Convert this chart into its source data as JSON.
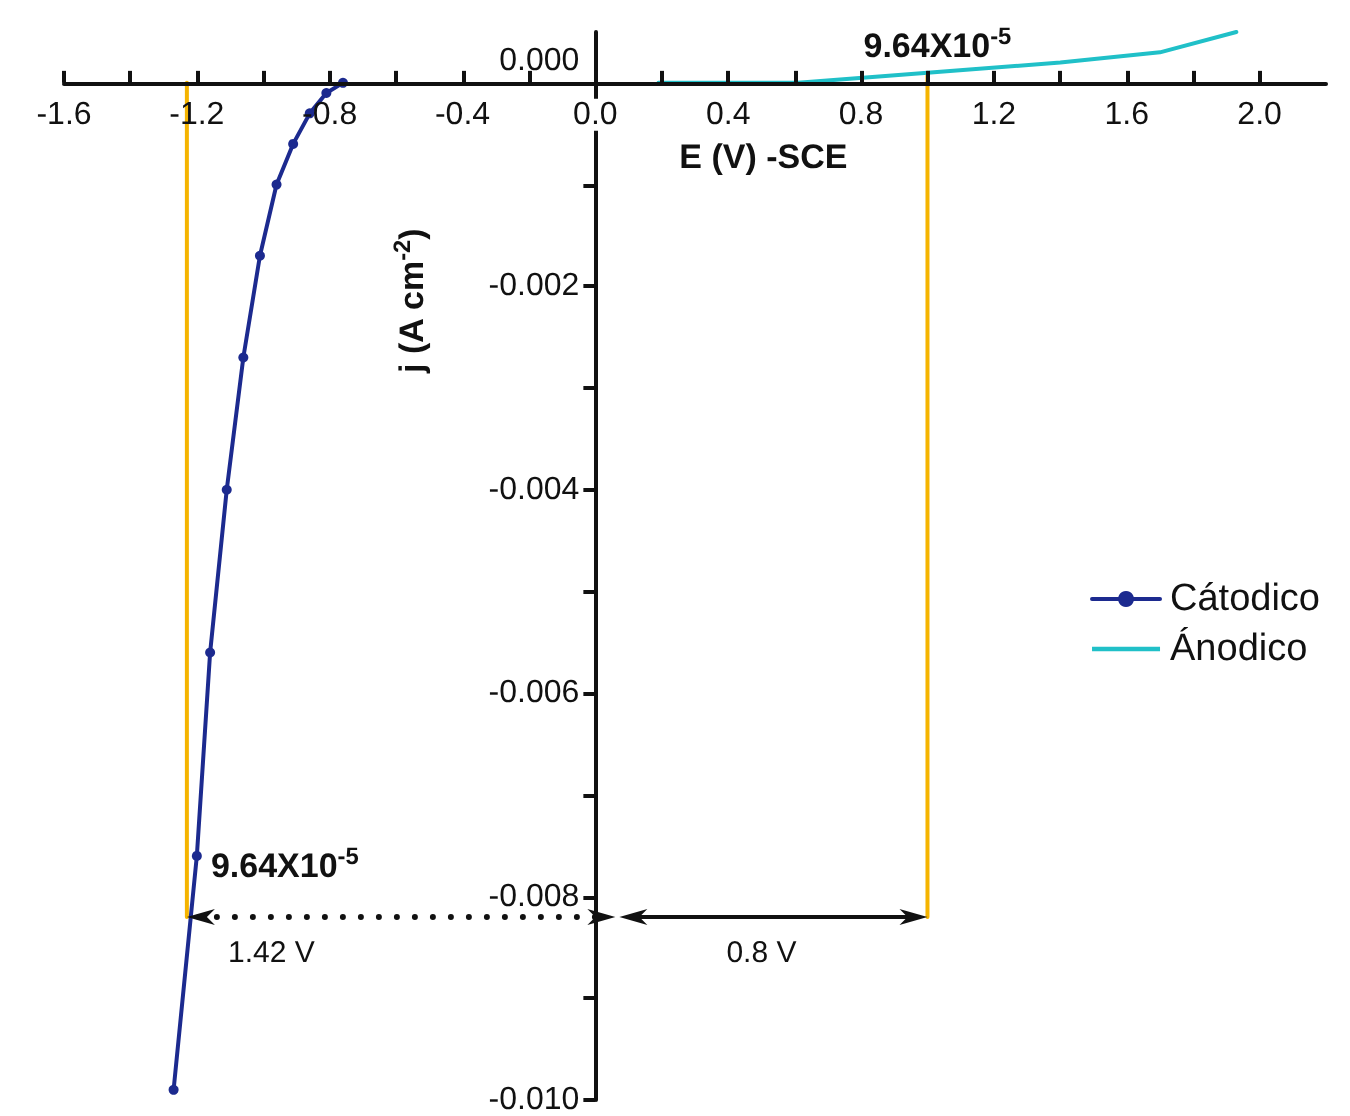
{
  "chart_data": {
    "type": "line",
    "xlabel": "E (V) -SCE",
    "ylabel": "j (A cm$^{-2}$)",
    "xlim": [
      -1.6,
      2.2
    ],
    "xticks": [
      -1.6,
      {
        "value": -1.4,
        "label": null
      },
      -1.2,
      {
        "value": -1.0,
        "label": null
      },
      -0.8,
      {
        "value": -0.6,
        "label": null
      },
      -0.4,
      {
        "value": -0.2,
        "label": null
      },
      {
        "value": 0,
        "label": "0.0"
      },
      {
        "value": 0.2,
        "label": null
      },
      0.4,
      {
        "value": 0.6,
        "label": null
      },
      0.8,
      {
        "value": 1.0,
        "label": null
      },
      1.2,
      {
        "value": 1.4,
        "label": null
      },
      1.6,
      {
        "value": 1.8,
        "label": null
      },
      {
        "value": 2.0,
        "label": "2.0"
      }
    ],
    "ylim": [
      -0.01,
      0.0005
    ],
    "yticks": [
      {
        "value": 0,
        "label": "0.000"
      },
      {
        "value": -0.001,
        "label": null
      },
      {
        "value": -0.002,
        "label": "-0.002"
      },
      {
        "value": -0.003,
        "label": null
      },
      {
        "value": -0.004,
        "label": "-0.004"
      },
      {
        "value": -0.005,
        "label": null
      },
      {
        "value": -0.006,
        "label": "-0.006"
      },
      {
        "value": -0.007,
        "label": null
      },
      {
        "value": -0.008,
        "label": "-0.008"
      },
      {
        "value": -0.009,
        "label": null
      },
      {
        "value": -0.01,
        "label": "-0.010"
      }
    ],
    "legend": "right",
    "series": [
      {
        "name": "Cátodico",
        "color": "#1c2a8f",
        "marker": "circle",
        "x": [
          -0.76,
          -0.81,
          -0.86,
          -0.91,
          -0.96,
          -1.01,
          -1.06,
          -1.11,
          -1.16,
          -1.2,
          -1.27
        ],
        "values": [
          0,
          -0.0001,
          -0.0003,
          -0.0006,
          -0.001,
          -0.0017,
          -0.0027,
          -0.004,
          -0.0056,
          -0.0076,
          -0.0099
        ]
      },
      {
        "name": "Ánodico",
        "color": "#20c0c8",
        "marker": "none",
        "x": [
          0.19,
          0.61,
          1.0,
          1.4,
          1.7,
          1.93
        ],
        "values": [
          0,
          0,
          0.0001,
          0.0002,
          0.0003,
          0.0005
        ]
      },
      {
        "color": "#f5b400",
        "marker": "none",
        "x": [
          -1.23,
          -1.23
        ],
        "values": [
          0,
          -0.0082
        ]
      },
      {
        "color": "#f5b400",
        "marker": "none",
        "x": [
          1.0,
          1.0
        ],
        "values": [
          0.0001,
          -0.0082
        ]
      }
    ],
    "annotations": [
      {
        "text": "9.64X10$^{-5}$",
        "x": 1.0,
        "y": 0.0001
      },
      {
        "text": "9.64X10$^{-5}$",
        "x": -1.23,
        "y": -0.0082
      },
      "1.42 V",
      "0.8 V"
    ]
  }
}
